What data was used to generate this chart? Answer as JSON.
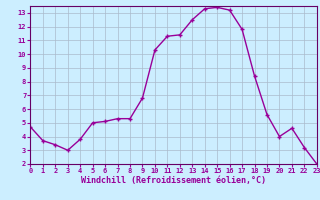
{
  "hours": [
    0,
    1,
    2,
    3,
    4,
    5,
    6,
    7,
    8,
    9,
    10,
    11,
    12,
    13,
    14,
    15,
    16,
    17,
    18,
    19,
    20,
    21,
    22,
    23
  ],
  "values": [
    4.7,
    3.7,
    3.4,
    3.0,
    3.8,
    5.0,
    5.1,
    5.3,
    5.3,
    6.8,
    10.3,
    11.3,
    11.4,
    12.5,
    13.3,
    13.4,
    13.2,
    11.8,
    8.4,
    5.6,
    4.0,
    4.6,
    3.2,
    2.0
  ],
  "xlim": [
    0,
    23
  ],
  "ylim": [
    2,
    13.5
  ],
  "yticks": [
    2,
    3,
    4,
    5,
    6,
    7,
    8,
    9,
    10,
    11,
    12,
    13
  ],
  "xticks": [
    0,
    1,
    2,
    3,
    4,
    5,
    6,
    7,
    8,
    9,
    10,
    11,
    12,
    13,
    14,
    15,
    16,
    17,
    18,
    19,
    20,
    21,
    22,
    23
  ],
  "xlabel": "Windchill (Refroidissement éolien,°C)",
  "line_color": "#990099",
  "marker": "+",
  "bg_color": "#cceeff",
  "grid_color": "#aabbcc",
  "axis_color": "#660066",
  "tick_color": "#990099",
  "marker_size": 3,
  "line_width": 1.0
}
